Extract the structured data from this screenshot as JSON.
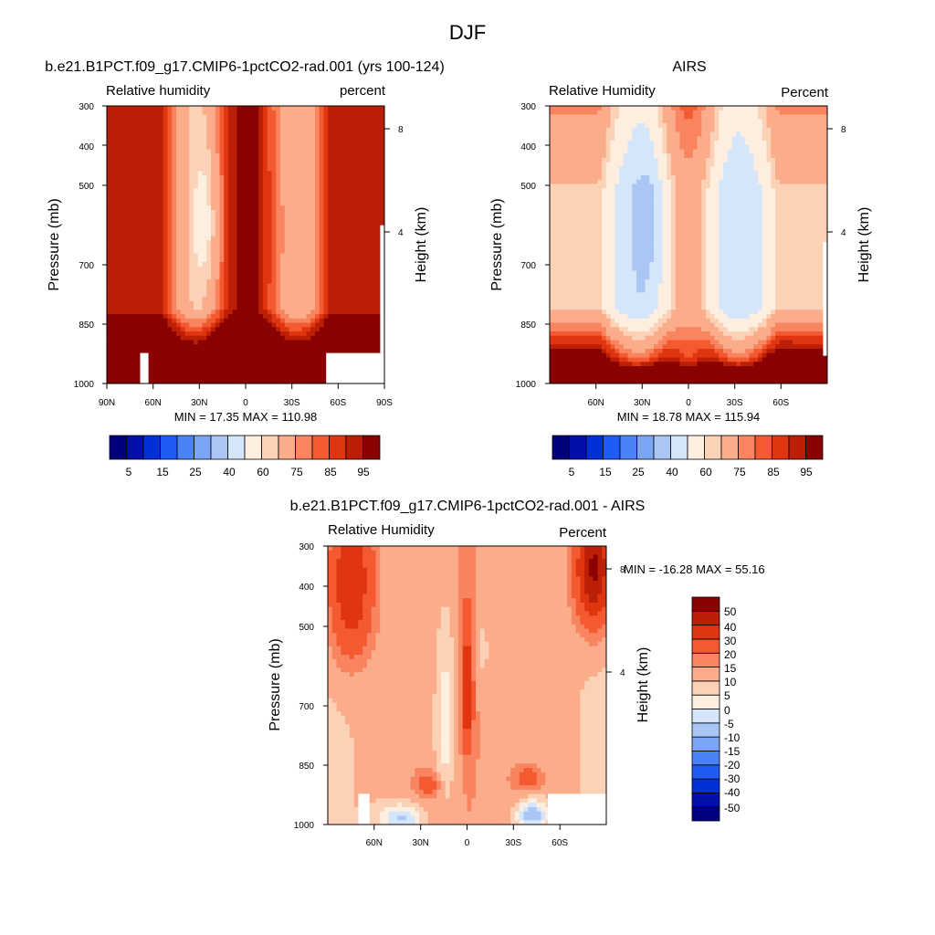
{
  "figure": {
    "title": "DJF"
  },
  "palettes": {
    "rh": [
      "#00007f",
      "#0010a8",
      "#0030d8",
      "#1e5cf5",
      "#4a82f8",
      "#7aa6f5",
      "#a9c6f5",
      "#d6e6fa",
      "#fdeee0",
      "#fcd2b7",
      "#fbac8a",
      "#f88460",
      "#f45a32",
      "#e03511",
      "#bb1f05",
      "#8a0303"
    ],
    "diff": [
      "#00007f",
      "#0010a8",
      "#0030d8",
      "#1e5cf5",
      "#4a82f8",
      "#7aa6f5",
      "#a9c6f5",
      "#d6e6fa",
      "#fdeee0",
      "#fcd2b7",
      "#fbac8a",
      "#f88460",
      "#f45a32",
      "#e03511",
      "#bb1f05",
      "#8a0303"
    ]
  },
  "chart_data": [
    {
      "id": "model",
      "type": "heatmap",
      "title": "b.e21.B1PCT.f09_g17.CMIP6-1pctCO2-rad.001 (yrs 100-124)",
      "left_label": "Relative humidity",
      "right_label": "percent",
      "ylabel": "Pressure (mb)",
      "y2label": "Height (km)",
      "yticks": [
        "300",
        "400",
        "500",
        "700",
        "850",
        "1000"
      ],
      "y2ticks": [
        "8",
        "4"
      ],
      "xticks": [
        "90N",
        "60N",
        "30N",
        "0",
        "30S",
        "60S",
        "90S"
      ],
      "minmax_text": "MIN =  17.35  MAX = 110.98",
      "min": 17.35,
      "max": 110.98,
      "xlim": [
        -90,
        90
      ],
      "ylim": [
        1000,
        300
      ],
      "levels": [
        5,
        10,
        15,
        20,
        25,
        30,
        40,
        50,
        60,
        65,
        75,
        80,
        85,
        90,
        95
      ],
      "colorbar_labels": [
        "5",
        "15",
        "25",
        "40",
        "60",
        "75",
        "85",
        "95"
      ]
    },
    {
      "id": "obs",
      "type": "heatmap",
      "title": "AIRS",
      "left_label": "Relative Humidity",
      "right_label": "Percent",
      "ylabel": "Pressure (mb)",
      "y2label": "Height (km)",
      "yticks": [
        "300",
        "400",
        "500",
        "700",
        "850",
        "1000"
      ],
      "y2ticks": [
        "8",
        "4"
      ],
      "xticks": [
        "60N",
        "30N",
        "0",
        "30S",
        "60S"
      ],
      "minmax_text": "MIN =  18.78  MAX = 115.94",
      "min": 18.78,
      "max": 115.94,
      "xlim": [
        -90,
        90
      ],
      "ylim": [
        1000,
        300
      ],
      "levels": [
        5,
        10,
        15,
        20,
        25,
        30,
        40,
        50,
        60,
        65,
        75,
        80,
        85,
        90,
        95
      ],
      "colorbar_labels": [
        "5",
        "15",
        "25",
        "40",
        "60",
        "75",
        "85",
        "95"
      ]
    },
    {
      "id": "diff",
      "type": "heatmap",
      "title": "b.e21.B1PCT.f09_g17.CMIP6-1pctCO2-rad.001 - AIRS",
      "left_label": "Relative Humidity",
      "right_label": "Percent",
      "ylabel": "Pressure (mb)",
      "y2label": "Height (km)",
      "yticks": [
        "300",
        "400",
        "500",
        "700",
        "850",
        "1000"
      ],
      "y2ticks": [
        "8",
        "4"
      ],
      "xticks": [
        "60N",
        "30N",
        "0",
        "30S",
        "60S"
      ],
      "minmax_text": "MIN = -16.28  MAX =  55.16",
      "min": -16.28,
      "max": 55.16,
      "xlim": [
        -90,
        90
      ],
      "ylim": [
        1000,
        300
      ],
      "levels": [
        -50,
        -40,
        -30,
        -20,
        -15,
        -10,
        -5,
        0,
        5,
        10,
        15,
        20,
        30,
        40,
        50
      ],
      "colorbar_labels": [
        "50",
        "40",
        "30",
        "20",
        "15",
        "10",
        "5",
        "0",
        "-5",
        "-10",
        "-15",
        "-20",
        "-30",
        "-40",
        "-50"
      ]
    }
  ]
}
